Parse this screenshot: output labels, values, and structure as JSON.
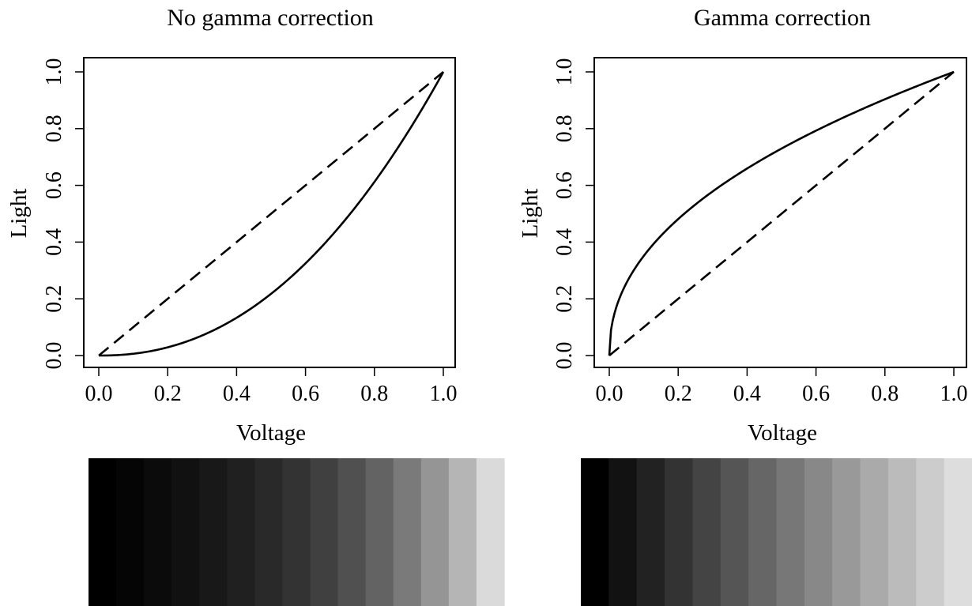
{
  "chart_data": [
    {
      "type": "line",
      "title": "No gamma correction",
      "xlabel": "Voltage",
      "ylabel": "Light",
      "xlim": [
        0,
        1
      ],
      "ylim": [
        0,
        1
      ],
      "x_ticks": [
        "0.0",
        "0.2",
        "0.4",
        "0.6",
        "0.8",
        "1.0"
      ],
      "y_ticks": [
        "0.0",
        "0.2",
        "0.4",
        "0.6",
        "0.8",
        "1.0"
      ],
      "grid": false,
      "series": [
        {
          "style": "dashed",
          "x": [
            0,
            1
          ],
          "y": [
            0,
            1
          ]
        },
        {
          "style": "solid",
          "x": [
            0,
            0.1,
            0.2,
            0.3,
            0.4,
            0.5,
            0.6,
            0.7,
            0.8,
            0.9,
            1.0
          ],
          "y": [
            0,
            0.006,
            0.029,
            0.071,
            0.133,
            0.218,
            0.325,
            0.456,
            0.612,
            0.793,
            1.0
          ]
        }
      ],
      "gray_ramp": [
        "#000000",
        "#050505",
        "#0b0b0b",
        "#111111",
        "#181818",
        "#202020",
        "#292929",
        "#333333",
        "#404040",
        "#505050",
        "#636363",
        "#7a7a7a",
        "#959595",
        "#b5b5b5",
        "#dadada"
      ]
    },
    {
      "type": "line",
      "title": "Gamma correction",
      "xlabel": "Voltage",
      "ylabel": "Light",
      "xlim": [
        0,
        1
      ],
      "ylim": [
        0,
        1
      ],
      "x_ticks": [
        "0.0",
        "0.2",
        "0.4",
        "0.6",
        "0.8",
        "1.0"
      ],
      "y_ticks": [
        "0.0",
        "0.2",
        "0.4",
        "0.6",
        "0.8",
        "1.0"
      ],
      "grid": false,
      "series": [
        {
          "style": "dashed",
          "x": [
            0,
            1
          ],
          "y": [
            0,
            1
          ]
        },
        {
          "style": "solid",
          "x": [
            0,
            0.005,
            0.02,
            0.05,
            0.1,
            0.2,
            0.3,
            0.4,
            0.5,
            0.6,
            0.7,
            0.8,
            0.9,
            1.0
          ],
          "y": [
            0,
            0.09,
            0.17,
            0.256,
            0.351,
            0.481,
            0.578,
            0.659,
            0.73,
            0.793,
            0.85,
            0.903,
            0.953,
            1.0
          ]
        }
      ],
      "gray_ramp": [
        "#000000",
        "#121212",
        "#222222",
        "#333333",
        "#444444",
        "#555555",
        "#666666",
        "#777777",
        "#888888",
        "#999999",
        "#aaaaaa",
        "#bbbbbb",
        "#cccccc",
        "#dddddd"
      ]
    }
  ]
}
